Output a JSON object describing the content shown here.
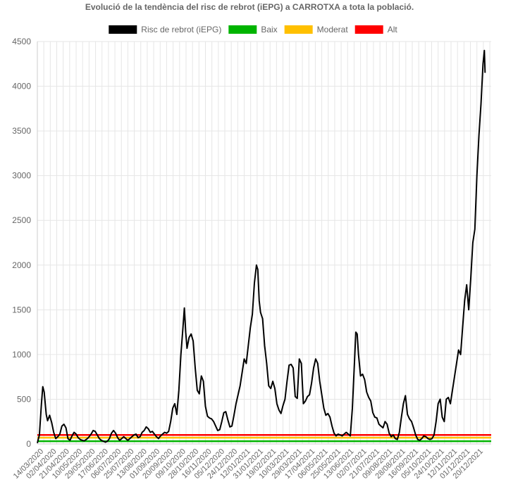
{
  "chart_data": {
    "type": "line",
    "title": "Evolució de la tendència del risc de rebrot (iEPG) a CARROTXA a tota la població.",
    "xlabel": "",
    "ylabel": "",
    "ylim": [
      0,
      4500
    ],
    "yticks": [
      0,
      500,
      1000,
      1500,
      2000,
      2500,
      3000,
      3500,
      4000,
      4500
    ],
    "grid": true,
    "legend_position": "top",
    "x_start": "2020-03-14",
    "x_end": "2022-01-10",
    "x_tick_labels": [
      "14/03/2020",
      "02/04/2020",
      "21/04/2020",
      "10/05/2020",
      "29/05/2020",
      "17/06/2020",
      "06/07/2020",
      "25/07/2020",
      "13/08/2020",
      "01/09/2020",
      "20/09/2020",
      "09/10/2020",
      "28/10/2020",
      "16/11/2020",
      "05/12/2020",
      "24/12/2020",
      "12/01/2021",
      "31/01/2021",
      "19/02/2021",
      "10/03/2021",
      "29/03/2021",
      "17/04/2021",
      "06/05/2021",
      "25/05/2021",
      "13/06/2021",
      "02/07/2021",
      "21/07/2021",
      "09/08/2021",
      "28/08/2021",
      "16/09/2021",
      "05/10/2021",
      "24/10/2021",
      "12/11/2021",
      "01/12/2021",
      "20/12/2021"
    ],
    "series": [
      {
        "name": "Risc de rebrot (iEPG)",
        "color": "#000000",
        "points": [
          [
            "2020-03-14",
            10
          ],
          [
            "2020-03-17",
            100
          ],
          [
            "2020-03-20",
            450
          ],
          [
            "2020-03-22",
            640
          ],
          [
            "2020-03-24",
            580
          ],
          [
            "2020-03-27",
            330
          ],
          [
            "2020-03-29",
            260
          ],
          [
            "2020-04-01",
            320
          ],
          [
            "2020-04-04",
            240
          ],
          [
            "2020-04-07",
            130
          ],
          [
            "2020-04-10",
            60
          ],
          [
            "2020-04-13",
            80
          ],
          [
            "2020-04-16",
            110
          ],
          [
            "2020-04-19",
            200
          ],
          [
            "2020-04-22",
            220
          ],
          [
            "2020-04-25",
            180
          ],
          [
            "2020-04-28",
            60
          ],
          [
            "2020-05-01",
            40
          ],
          [
            "2020-05-04",
            90
          ],
          [
            "2020-05-07",
            130
          ],
          [
            "2020-05-10",
            110
          ],
          [
            "2020-05-13",
            70
          ],
          [
            "2020-05-16",
            50
          ],
          [
            "2020-05-19",
            40
          ],
          [
            "2020-05-22",
            35
          ],
          [
            "2020-05-25",
            50
          ],
          [
            "2020-05-28",
            70
          ],
          [
            "2020-06-01",
            110
          ],
          [
            "2020-06-04",
            150
          ],
          [
            "2020-06-07",
            140
          ],
          [
            "2020-06-10",
            100
          ],
          [
            "2020-06-13",
            60
          ],
          [
            "2020-06-16",
            40
          ],
          [
            "2020-06-19",
            30
          ],
          [
            "2020-06-22",
            20
          ],
          [
            "2020-06-25",
            30
          ],
          [
            "2020-06-28",
            60
          ],
          [
            "2020-07-01",
            120
          ],
          [
            "2020-07-04",
            150
          ],
          [
            "2020-07-07",
            120
          ],
          [
            "2020-07-10",
            70
          ],
          [
            "2020-07-13",
            40
          ],
          [
            "2020-07-16",
            60
          ],
          [
            "2020-07-19",
            80
          ],
          [
            "2020-07-22",
            60
          ],
          [
            "2020-07-25",
            40
          ],
          [
            "2020-07-28",
            60
          ],
          [
            "2020-07-31",
            80
          ],
          [
            "2020-08-03",
            100
          ],
          [
            "2020-08-06",
            110
          ],
          [
            "2020-08-09",
            70
          ],
          [
            "2020-08-12",
            80
          ],
          [
            "2020-08-15",
            130
          ],
          [
            "2020-08-18",
            150
          ],
          [
            "2020-08-21",
            190
          ],
          [
            "2020-08-24",
            170
          ],
          [
            "2020-08-27",
            130
          ],
          [
            "2020-08-30",
            140
          ],
          [
            "2020-09-02",
            110
          ],
          [
            "2020-09-05",
            80
          ],
          [
            "2020-09-08",
            60
          ],
          [
            "2020-09-11",
            90
          ],
          [
            "2020-09-14",
            110
          ],
          [
            "2020-09-17",
            130
          ],
          [
            "2020-09-20",
            120
          ],
          [
            "2020-09-23",
            140
          ],
          [
            "2020-09-26",
            250
          ],
          [
            "2020-09-29",
            400
          ],
          [
            "2020-10-02",
            450
          ],
          [
            "2020-10-05",
            330
          ],
          [
            "2020-10-08",
            600
          ],
          [
            "2020-10-11",
            1000
          ],
          [
            "2020-10-14",
            1300
          ],
          [
            "2020-10-16",
            1520
          ],
          [
            "2020-10-18",
            1250
          ],
          [
            "2020-10-20",
            1070
          ],
          [
            "2020-10-23",
            1190
          ],
          [
            "2020-10-26",
            1230
          ],
          [
            "2020-10-29",
            1150
          ],
          [
            "2020-11-01",
            850
          ],
          [
            "2020-11-04",
            600
          ],
          [
            "2020-11-07",
            560
          ],
          [
            "2020-11-10",
            760
          ],
          [
            "2020-11-13",
            700
          ],
          [
            "2020-11-16",
            420
          ],
          [
            "2020-11-19",
            310
          ],
          [
            "2020-11-22",
            290
          ],
          [
            "2020-11-25",
            280
          ],
          [
            "2020-11-28",
            250
          ],
          [
            "2020-12-01",
            200
          ],
          [
            "2020-12-04",
            150
          ],
          [
            "2020-12-07",
            160
          ],
          [
            "2020-12-10",
            250
          ],
          [
            "2020-12-13",
            350
          ],
          [
            "2020-12-16",
            360
          ],
          [
            "2020-12-19",
            270
          ],
          [
            "2020-12-22",
            190
          ],
          [
            "2020-12-25",
            200
          ],
          [
            "2020-12-28",
            320
          ],
          [
            "2020-12-31",
            450
          ],
          [
            "2021-01-03",
            550
          ],
          [
            "2021-01-06",
            650
          ],
          [
            "2021-01-09",
            800
          ],
          [
            "2021-01-12",
            950
          ],
          [
            "2021-01-15",
            900
          ],
          [
            "2021-01-18",
            1100
          ],
          [
            "2021-01-21",
            1300
          ],
          [
            "2021-01-24",
            1450
          ],
          [
            "2021-01-27",
            1800
          ],
          [
            "2021-01-30",
            2000
          ],
          [
            "2021-02-01",
            1950
          ],
          [
            "2021-02-03",
            1600
          ],
          [
            "2021-02-05",
            1470
          ],
          [
            "2021-02-08",
            1400
          ],
          [
            "2021-02-11",
            1100
          ],
          [
            "2021-02-14",
            900
          ],
          [
            "2021-02-17",
            650
          ],
          [
            "2021-02-20",
            620
          ],
          [
            "2021-02-23",
            700
          ],
          [
            "2021-02-26",
            620
          ],
          [
            "2021-03-01",
            450
          ],
          [
            "2021-03-04",
            380
          ],
          [
            "2021-03-07",
            340
          ],
          [
            "2021-03-10",
            430
          ],
          [
            "2021-03-13",
            500
          ],
          [
            "2021-03-16",
            700
          ],
          [
            "2021-03-19",
            880
          ],
          [
            "2021-03-22",
            890
          ],
          [
            "2021-03-25",
            850
          ],
          [
            "2021-03-28",
            530
          ],
          [
            "2021-03-31",
            510
          ],
          [
            "2021-04-03",
            950
          ],
          [
            "2021-04-06",
            900
          ],
          [
            "2021-04-09",
            450
          ],
          [
            "2021-04-12",
            480
          ],
          [
            "2021-04-15",
            530
          ],
          [
            "2021-04-18",
            550
          ],
          [
            "2021-04-21",
            680
          ],
          [
            "2021-04-24",
            850
          ],
          [
            "2021-04-27",
            950
          ],
          [
            "2021-04-30",
            900
          ],
          [
            "2021-05-03",
            700
          ],
          [
            "2021-05-06",
            550
          ],
          [
            "2021-05-09",
            400
          ],
          [
            "2021-05-12",
            320
          ],
          [
            "2021-05-15",
            340
          ],
          [
            "2021-05-18",
            300
          ],
          [
            "2021-05-21",
            200
          ],
          [
            "2021-05-24",
            120
          ],
          [
            "2021-05-27",
            90
          ],
          [
            "2021-05-30",
            110
          ],
          [
            "2021-06-02",
            100
          ],
          [
            "2021-06-05",
            90
          ],
          [
            "2021-06-08",
            110
          ],
          [
            "2021-06-11",
            130
          ],
          [
            "2021-06-14",
            110
          ],
          [
            "2021-06-17",
            90
          ],
          [
            "2021-06-20",
            400
          ],
          [
            "2021-06-23",
            900
          ],
          [
            "2021-06-25",
            1250
          ],
          [
            "2021-06-27",
            1230
          ],
          [
            "2021-06-29",
            1000
          ],
          [
            "2021-07-02",
            760
          ],
          [
            "2021-07-05",
            780
          ],
          [
            "2021-07-08",
            720
          ],
          [
            "2021-07-11",
            580
          ],
          [
            "2021-07-14",
            520
          ],
          [
            "2021-07-17",
            480
          ],
          [
            "2021-07-20",
            350
          ],
          [
            "2021-07-23",
            300
          ],
          [
            "2021-07-26",
            290
          ],
          [
            "2021-07-29",
            220
          ],
          [
            "2021-08-01",
            200
          ],
          [
            "2021-08-04",
            180
          ],
          [
            "2021-08-07",
            250
          ],
          [
            "2021-08-10",
            220
          ],
          [
            "2021-08-13",
            120
          ],
          [
            "2021-08-16",
            80
          ],
          [
            "2021-08-19",
            100
          ],
          [
            "2021-08-22",
            60
          ],
          [
            "2021-08-25",
            50
          ],
          [
            "2021-08-28",
            130
          ],
          [
            "2021-08-31",
            300
          ],
          [
            "2021-09-03",
            450
          ],
          [
            "2021-09-06",
            540
          ],
          [
            "2021-09-09",
            330
          ],
          [
            "2021-09-12",
            280
          ],
          [
            "2021-09-15",
            250
          ],
          [
            "2021-09-18",
            180
          ],
          [
            "2021-09-21",
            100
          ],
          [
            "2021-09-24",
            50
          ],
          [
            "2021-09-27",
            40
          ],
          [
            "2021-09-30",
            60
          ],
          [
            "2021-10-03",
            90
          ],
          [
            "2021-10-06",
            80
          ],
          [
            "2021-10-09",
            60
          ],
          [
            "2021-10-12",
            50
          ],
          [
            "2021-10-15",
            60
          ],
          [
            "2021-10-18",
            100
          ],
          [
            "2021-10-21",
            250
          ],
          [
            "2021-10-24",
            450
          ],
          [
            "2021-10-27",
            500
          ],
          [
            "2021-10-30",
            300
          ],
          [
            "2021-11-02",
            250
          ],
          [
            "2021-11-05",
            500
          ],
          [
            "2021-11-08",
            520
          ],
          [
            "2021-11-11",
            450
          ],
          [
            "2021-11-14",
            600
          ],
          [
            "2021-11-17",
            750
          ],
          [
            "2021-11-20",
            900
          ],
          [
            "2021-11-23",
            1050
          ],
          [
            "2021-11-26",
            1000
          ],
          [
            "2021-11-29",
            1300
          ],
          [
            "2021-12-02",
            1600
          ],
          [
            "2021-12-05",
            1780
          ],
          [
            "2021-12-08",
            1500
          ],
          [
            "2021-12-11",
            1850
          ],
          [
            "2021-12-14",
            2250
          ],
          [
            "2021-12-17",
            2400
          ],
          [
            "2021-12-20",
            3000
          ],
          [
            "2021-12-23",
            3450
          ],
          [
            "2021-12-26",
            3800
          ],
          [
            "2021-12-29",
            4250
          ],
          [
            "2021-12-31",
            4400
          ],
          [
            "2022-01-01",
            4150
          ]
        ]
      },
      {
        "name": "Baix",
        "color": "#00b400",
        "value": 30
      },
      {
        "name": "Moderat",
        "color": "#ffc000",
        "value": 70
      },
      {
        "name": "Alt",
        "color": "#ff0000",
        "value": 100
      }
    ]
  }
}
